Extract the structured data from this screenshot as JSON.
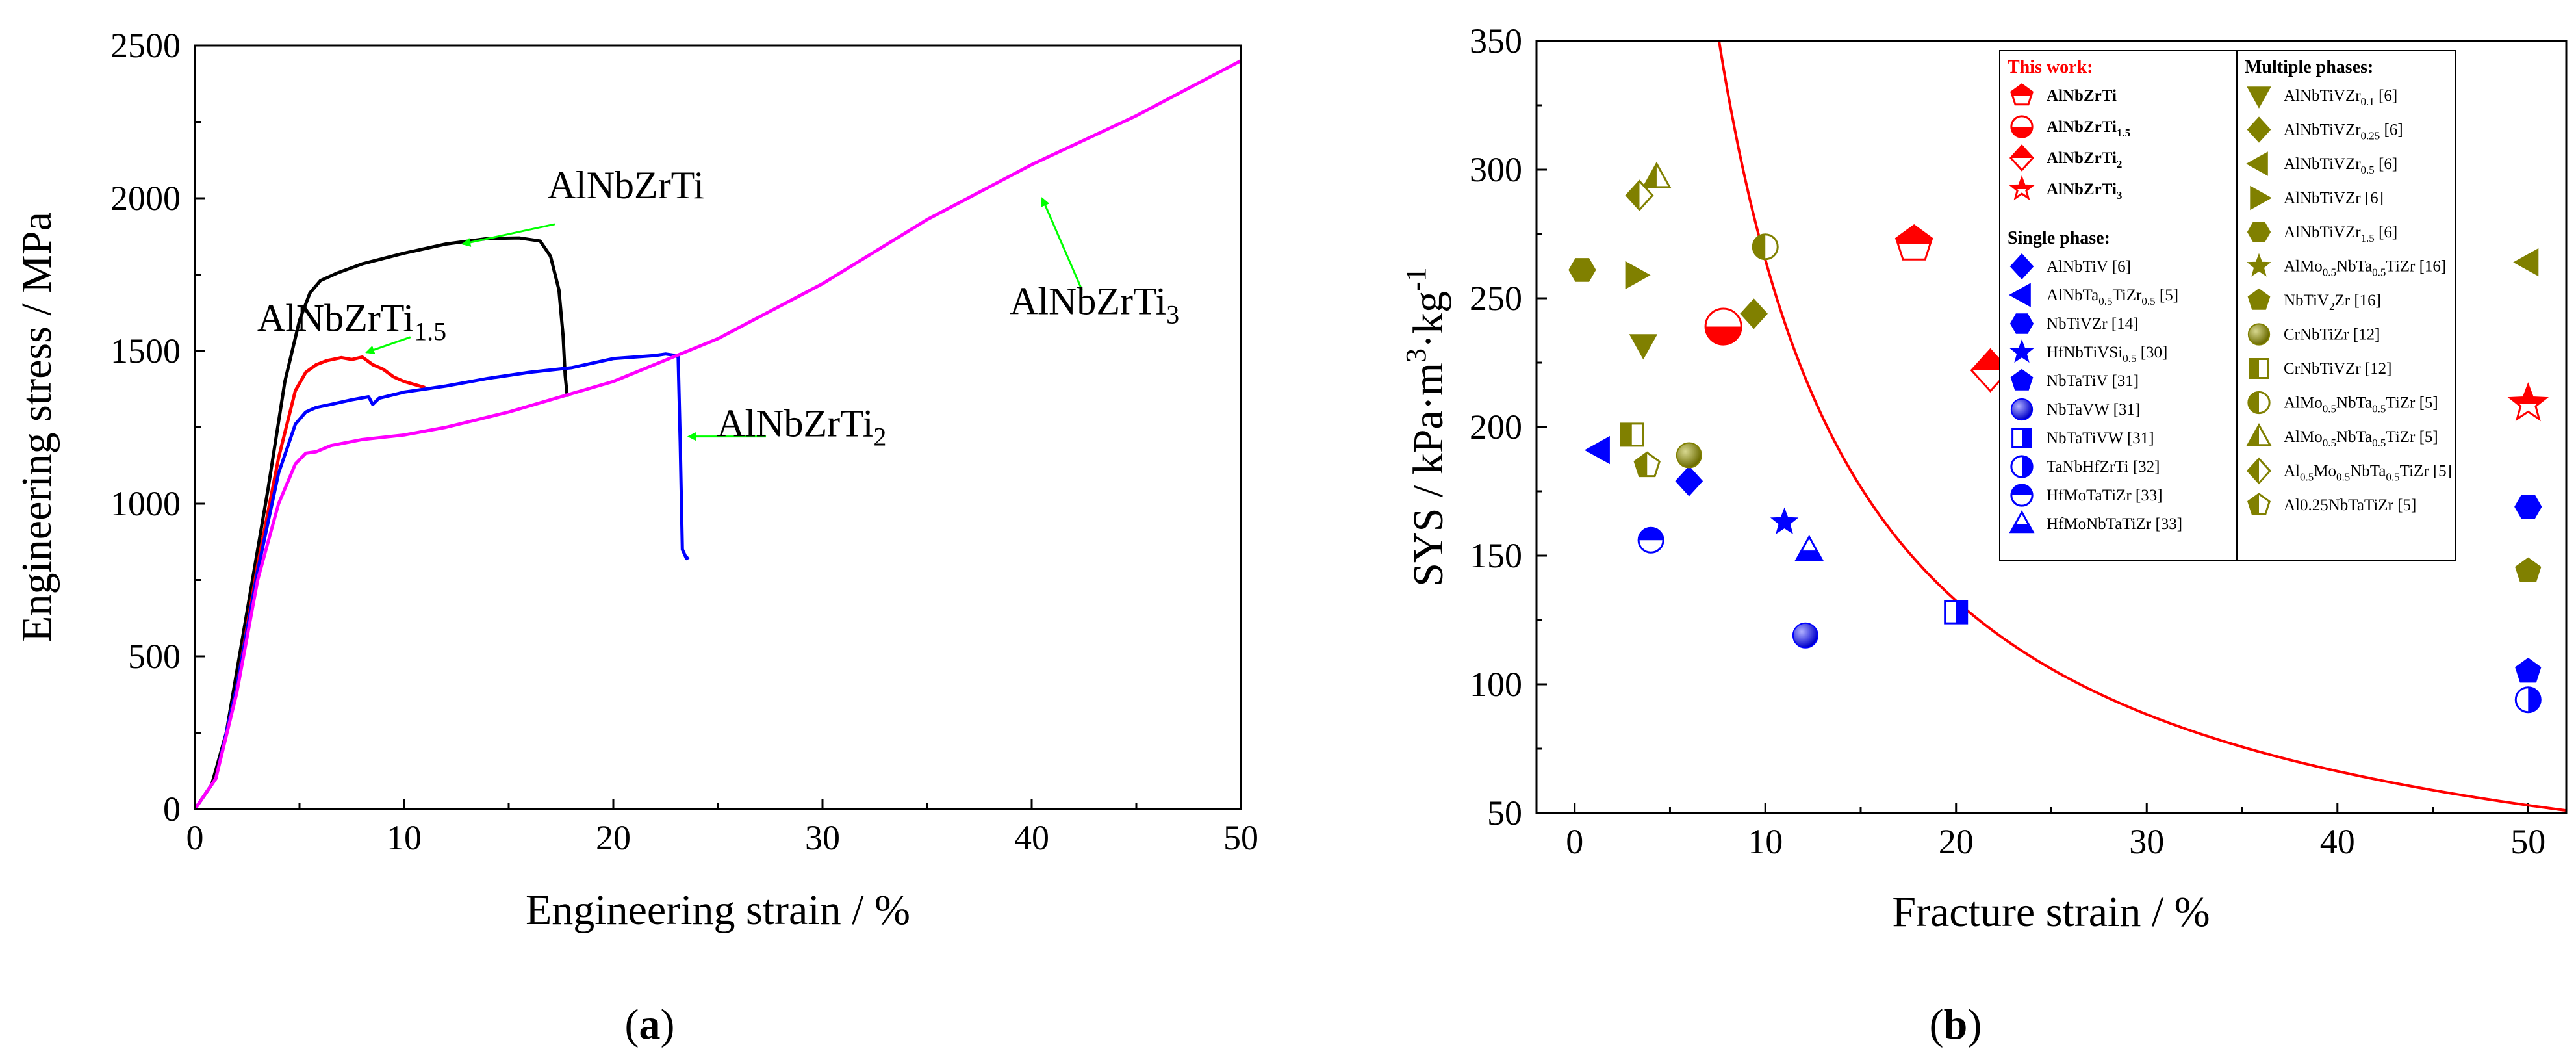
{
  "chart_data": [
    {
      "type": "line",
      "panel": "(a)",
      "panel_letter": "a",
      "xlabel": "Engineering strain / %",
      "ylabel": "Engineering stress / MPa",
      "xlim": [
        0,
        50
      ],
      "ylim": [
        0,
        2500
      ],
      "xticks": [
        "0",
        "10",
        "20",
        "30",
        "40",
        "50"
      ],
      "yticks": [
        "0",
        "500",
        "1000",
        "1500",
        "2000",
        "2500"
      ],
      "series": [
        {
          "name": "AlNbZrTi",
          "color": "#000000",
          "x": [
            0,
            0.8,
            1.5,
            2.5,
            3.5,
            4.3,
            5.0,
            5.5,
            6.0,
            6.8,
            8,
            10,
            12,
            14,
            15.5,
            16.5,
            17.0,
            17.4,
            17.6,
            17.7,
            17.8
          ],
          "y": [
            0,
            80,
            250,
            650,
            1050,
            1400,
            1600,
            1690,
            1730,
            1755,
            1785,
            1820,
            1850,
            1868,
            1870,
            1860,
            1810,
            1700,
            1550,
            1420,
            1350
          ]
        },
        {
          "name": "AlNbZrTi1.5",
          "color": "#ff0000",
          "x": [
            0,
            1,
            2,
            3,
            4,
            4.8,
            5.3,
            5.8,
            6.3,
            7,
            7.5,
            8,
            8.5,
            9,
            9.5,
            10,
            10.5,
            11
          ],
          "y": [
            0,
            100,
            400,
            800,
            1150,
            1370,
            1430,
            1455,
            1468,
            1478,
            1472,
            1480,
            1455,
            1440,
            1415,
            1400,
            1390,
            1380
          ]
        },
        {
          "name": "AlNbZrTi2",
          "color": "#0000ff",
          "x": [
            0,
            1,
            2,
            3,
            4,
            4.8,
            5.3,
            5.8,
            6.5,
            7.5,
            8.3,
            8.5,
            8.8,
            10,
            12,
            14,
            16,
            18,
            20,
            22,
            22.5,
            23,
            23.1,
            23.2,
            23.3,
            23.5,
            23.6
          ],
          "y": [
            0,
            100,
            400,
            780,
            1100,
            1260,
            1300,
            1315,
            1325,
            1340,
            1350,
            1325,
            1345,
            1365,
            1385,
            1410,
            1430,
            1445,
            1475,
            1485,
            1490,
            1485,
            1480,
            1200,
            850,
            820,
            825
          ]
        },
        {
          "name": "AlNbZrTi3",
          "color": "#ff00ff",
          "x": [
            0,
            1,
            2,
            3,
            4,
            4.8,
            5.3,
            5.8,
            6.5,
            8,
            10,
            12,
            15,
            20,
            25,
            30,
            35,
            40,
            45,
            50
          ],
          "y": [
            0,
            100,
            380,
            750,
            1000,
            1130,
            1165,
            1170,
            1190,
            1210,
            1225,
            1250,
            1300,
            1400,
            1540,
            1720,
            1930,
            2110,
            2270,
            2450
          ]
        }
      ],
      "annotations": [
        {
          "text": "AlNbZrTi",
          "base": "AlNbZrTi",
          "sub": ""
        },
        {
          "text": "AlNbZrTi1.5",
          "base": "AlNbZrTi",
          "sub": "1.5"
        },
        {
          "text": "AlNbZrTi2",
          "base": "AlNbZrTi",
          "sub": "2"
        },
        {
          "text": "AlNbZrTi3",
          "base": "AlNbZrTi",
          "sub": "3"
        }
      ],
      "arrow_color": "#00ff00"
    },
    {
      "type": "scatter",
      "panel": "(b)",
      "panel_letter": "b",
      "xlabel": "Fracture strain / %",
      "ylabel": "SYS / kPa·m³·kg⁻¹",
      "xlim": [
        -2,
        52
      ],
      "ylim": [
        50,
        350
      ],
      "xticks": [
        "0",
        "10",
        "20",
        "30",
        "40",
        "50"
      ],
      "yticks": [
        "50",
        "100",
        "150",
        "200",
        "250",
        "300",
        "350"
      ],
      "trend_curve": {
        "color": "#ff0000",
        "description": "boundary curve",
        "k": 2650
      },
      "legend": {
        "this_work_title": "This work:",
        "single_title": "Single phase:",
        "multiple_title": "Multiple phases:"
      },
      "groups": [
        {
          "group": "this_work",
          "color": "#ff0000",
          "entries": [
            {
              "base": "AlNbZrTi",
              "parts": [
                [
                  "AlNbZrTi",
                  ""
                ]
              ],
              "ref": "",
              "marker": "pentagon",
              "fill": "top",
              "points": [
                [
                  17.8,
                  271
                ]
              ]
            },
            {
              "base": "AlNbZrTi1.5",
              "parts": [
                [
                  "AlNbZrTi",
                  ""
                ],
                [
                  "1.5",
                  "sub"
                ]
              ],
              "ref": "",
              "marker": "circle",
              "fill": "bottom",
              "points": [
                [
                  7.8,
                  239
                ]
              ]
            },
            {
              "base": "AlNbZrTi2",
              "parts": [
                [
                  "AlNbZrTi",
                  ""
                ],
                [
                  "2",
                  "sub"
                ]
              ],
              "ref": "",
              "marker": "diamond",
              "fill": "top",
              "points": [
                [
                  21.8,
                  222
                ]
              ]
            },
            {
              "base": "AlNbZrTi3",
              "parts": [
                [
                  "AlNbZrTi",
                  ""
                ],
                [
                  "3",
                  "sub"
                ]
              ],
              "ref": "",
              "marker": "star",
              "fill": "top",
              "points": [
                [
                  50,
                  209
                ]
              ]
            }
          ]
        },
        {
          "group": "single",
          "color": "#0000ff",
          "entries": [
            {
              "parts": [
                [
                  "AlNbTiV",
                  ""
                ]
              ],
              "ref": " [6]",
              "marker": "diamond",
              "fill": "full",
              "points": [
                [
                  6,
                  179
                ]
              ]
            },
            {
              "parts": [
                [
                  "AlNbTa",
                  ""
                ],
                [
                  "0.5",
                  "sub"
                ],
                [
                  "TiZr",
                  ""
                ],
                [
                  "0.5",
                  "sub"
                ]
              ],
              "ref": " [5]",
              "marker": "tri-left",
              "fill": "full",
              "points": [
                [
                  1.3,
                  191
                ]
              ]
            },
            {
              "parts": [
                [
                  "NbTiVZr",
                  ""
                ]
              ],
              "ref": " [14]",
              "marker": "hexagon",
              "fill": "full",
              "points": [
                [
                  50,
                  169
                ]
              ]
            },
            {
              "parts": [
                [
                  "HfNbTiVSi",
                  ""
                ],
                [
                  "0.5",
                  "sub"
                ]
              ],
              "ref": " [30]",
              "marker": "star",
              "fill": "full",
              "points": [
                [
                  11,
                  163
                ]
              ]
            },
            {
              "parts": [
                [
                  "NbTaTiV",
                  ""
                ]
              ],
              "ref": " [31]",
              "marker": "pentagon",
              "fill": "full",
              "points": [
                [
                  50,
                  105
                ]
              ]
            },
            {
              "parts": [
                [
                  "NbTaVW",
                  ""
                ]
              ],
              "ref": " [31]",
              "marker": "circle",
              "fill": "sphere",
              "points": [
                [
                  12.1,
                  119
                ]
              ]
            },
            {
              "parts": [
                [
                  "NbTaTiVW",
                  ""
                ]
              ],
              "ref": " [31]",
              "marker": "square",
              "fill": "right",
              "points": [
                [
                  20,
                  128
                ]
              ]
            },
            {
              "parts": [
                [
                  "TaNbHfZrTi",
                  ""
                ]
              ],
              "ref": " [32]",
              "marker": "circle",
              "fill": "right",
              "points": [
                [
                  50,
                  94
                ]
              ]
            },
            {
              "parts": [
                [
                  "HfMoTaTiZr",
                  ""
                ]
              ],
              "ref": " [33]",
              "marker": "circle",
              "fill": "top",
              "points": [
                [
                  4,
                  156
                ]
              ]
            },
            {
              "parts": [
                [
                  "HfMoNbTaTiZr",
                  ""
                ]
              ],
              "ref": " [33]",
              "marker": "tri-up",
              "fill": "bottom",
              "points": [
                [
                  12.3,
                  152
                ]
              ]
            }
          ]
        },
        {
          "group": "multiple",
          "color": "#808000",
          "entries": [
            {
              "parts": [
                [
                  "AlNbTiVZr",
                  ""
                ],
                [
                  "0.1",
                  "sub"
                ]
              ],
              "ref": " [6]",
              "marker": "tri-down",
              "fill": "full",
              "points": [
                [
                  3.6,
                  232
                ]
              ]
            },
            {
              "parts": [
                [
                  "AlNbTiVZr",
                  ""
                ],
                [
                  "0.25",
                  "sub"
                ]
              ],
              "ref": " [6]",
              "marker": "diamond",
              "fill": "full",
              "points": [
                [
                  9.4,
                  244
                ]
              ]
            },
            {
              "parts": [
                [
                  "AlNbTiVZr",
                  ""
                ],
                [
                  "0.5",
                  "sub"
                ]
              ],
              "ref": " [6]",
              "marker": "tri-left",
              "fill": "full",
              "points": [
                [
                  50,
                  264
                ]
              ]
            },
            {
              "parts": [
                [
                  "AlNbTiVZr",
                  ""
                ]
              ],
              "ref": " [6]",
              "marker": "tri-right",
              "fill": "full",
              "points": [
                [
                  3.2,
                  259
                ]
              ]
            },
            {
              "parts": [
                [
                  "AlNbTiVZr",
                  ""
                ],
                [
                  "1.5",
                  "sub"
                ]
              ],
              "ref": " [6]",
              "marker": "hexagon",
              "fill": "full",
              "points": [
                [
                  0.4,
                  261
                ]
              ]
            },
            {
              "parts": [
                [
                  "AlMo",
                  ""
                ],
                [
                  "0.5",
                  "sub"
                ],
                [
                  "NbTa",
                  ""
                ],
                [
                  "0.5",
                  "sub"
                ],
                [
                  "TiZr",
                  ""
                ]
              ],
              "ref": " [16]",
              "marker": "star",
              "fill": "full",
              "points": []
            },
            {
              "parts": [
                [
                  "NbTiV",
                  ""
                ],
                [
                  "2",
                  "sub"
                ],
                [
                  "Zr",
                  ""
                ]
              ],
              "ref": " [16]",
              "marker": "pentagon",
              "fill": "full",
              "points": [
                [
                  50,
                  144
                ]
              ]
            },
            {
              "parts": [
                [
                  "CrNbTiZr",
                  ""
                ]
              ],
              "ref": " [12]",
              "marker": "circle",
              "fill": "sphere",
              "points": [
                [
                  6,
                  189
                ]
              ]
            },
            {
              "parts": [
                [
                  "CrNbTiVZr",
                  ""
                ]
              ],
              "ref": " [12]",
              "marker": "square",
              "fill": "left",
              "points": [
                [
                  3,
                  197
                ]
              ]
            },
            {
              "parts": [
                [
                  "AlMo",
                  ""
                ],
                [
                  "0.5",
                  "sub"
                ],
                [
                  "NbTa",
                  ""
                ],
                [
                  "0.5",
                  "sub"
                ],
                [
                  "TiZr",
                  ""
                ]
              ],
              "ref": " [5]",
              "marker": "circle",
              "fill": "left",
              "points": [
                [
                  10,
                  270
                ]
              ]
            },
            {
              "parts": [
                [
                  "AlMo",
                  ""
                ],
                [
                  "0.5",
                  "sub"
                ],
                [
                  "NbTa",
                  ""
                ],
                [
                  "0.5",
                  "sub"
                ],
                [
                  "TiZr",
                  ""
                ]
              ],
              "ref": " [5]",
              "marker": "tri-up",
              "fill": "left",
              "points": [
                [
                  4.3,
                  297
                ]
              ]
            },
            {
              "parts": [
                [
                  "Al",
                  ""
                ],
                [
                  "0.5",
                  "sub"
                ],
                [
                  "Mo",
                  ""
                ],
                [
                  "0.5",
                  "sub"
                ],
                [
                  "NbTa",
                  ""
                ],
                [
                  "0.5",
                  "sub"
                ],
                [
                  "TiZr",
                  ""
                ]
              ],
              "ref": " [5]",
              "marker": "diamond",
              "fill": "left",
              "points": [
                [
                  3.4,
                  290
                ]
              ]
            },
            {
              "parts": [
                [
                  "Al0.25NbTaTiZr",
                  ""
                ]
              ],
              "ref": " [5]",
              "marker": "pentagon",
              "fill": "left",
              "points": [
                [
                  3.8,
                  185
                ]
              ]
            }
          ]
        }
      ]
    }
  ]
}
